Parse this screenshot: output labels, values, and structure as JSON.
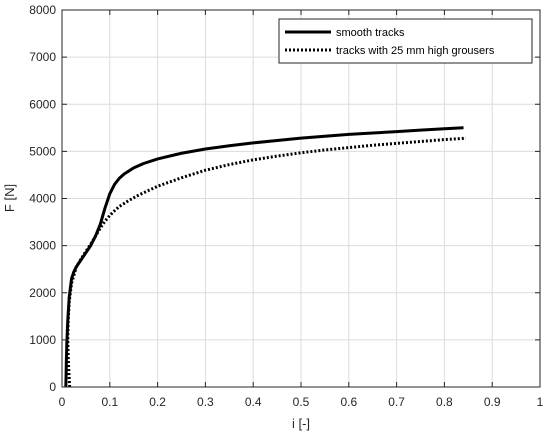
{
  "chart_data": {
    "type": "line",
    "title": "",
    "xlabel": "i [-]",
    "ylabel": "F [N]",
    "xlim": [
      0,
      1
    ],
    "ylim": [
      0,
      8000
    ],
    "x_ticks": [
      "0",
      "0.1",
      "0.2",
      "0.3",
      "0.4",
      "0.5",
      "0.6",
      "0.7",
      "0.8",
      "0.9",
      "1"
    ],
    "y_ticks": [
      "0",
      "1000",
      "2000",
      "3000",
      "4000",
      "5000",
      "6000",
      "7000",
      "8000"
    ],
    "grid": true,
    "legend_position": "top-right",
    "series": [
      {
        "name": "smooth tracks",
        "style": "solid",
        "color": "#000000",
        "x": [
          0.008,
          0.0085,
          0.009,
          0.01,
          0.012,
          0.015,
          0.02,
          0.025,
          0.03,
          0.04,
          0.05,
          0.06,
          0.07,
          0.08,
          0.09,
          0.1,
          0.11,
          0.12,
          0.13,
          0.15,
          0.17,
          0.2,
          0.25,
          0.3,
          0.35,
          0.4,
          0.45,
          0.5,
          0.55,
          0.6,
          0.65,
          0.7,
          0.75,
          0.8,
          0.84
        ],
        "y": [
          0,
          200,
          500,
          900,
          1400,
          1900,
          2300,
          2450,
          2550,
          2700,
          2850,
          3000,
          3200,
          3450,
          3800,
          4100,
          4300,
          4430,
          4520,
          4650,
          4740,
          4840,
          4960,
          5050,
          5120,
          5180,
          5230,
          5280,
          5320,
          5360,
          5390,
          5420,
          5450,
          5480,
          5500
        ]
      },
      {
        "name": "tracks with 25 mm high grousers",
        "style": "dotted",
        "color": "#000000",
        "x": [
          0.016,
          0.015,
          0.014,
          0.013,
          0.012,
          0.013,
          0.015,
          0.02,
          0.03,
          0.04,
          0.05,
          0.06,
          0.07,
          0.08,
          0.09,
          0.1,
          0.11,
          0.12,
          0.14,
          0.16,
          0.2,
          0.25,
          0.3,
          0.35,
          0.4,
          0.45,
          0.5,
          0.55,
          0.6,
          0.65,
          0.7,
          0.75,
          0.8,
          0.845
        ],
        "y": [
          0,
          200,
          400,
          650,
          1000,
          1400,
          1800,
          2200,
          2550,
          2720,
          2880,
          3030,
          3200,
          3370,
          3520,
          3640,
          3740,
          3830,
          3960,
          4070,
          4260,
          4440,
          4600,
          4720,
          4820,
          4900,
          4970,
          5030,
          5080,
          5130,
          5170,
          5210,
          5250,
          5280
        ]
      }
    ]
  }
}
